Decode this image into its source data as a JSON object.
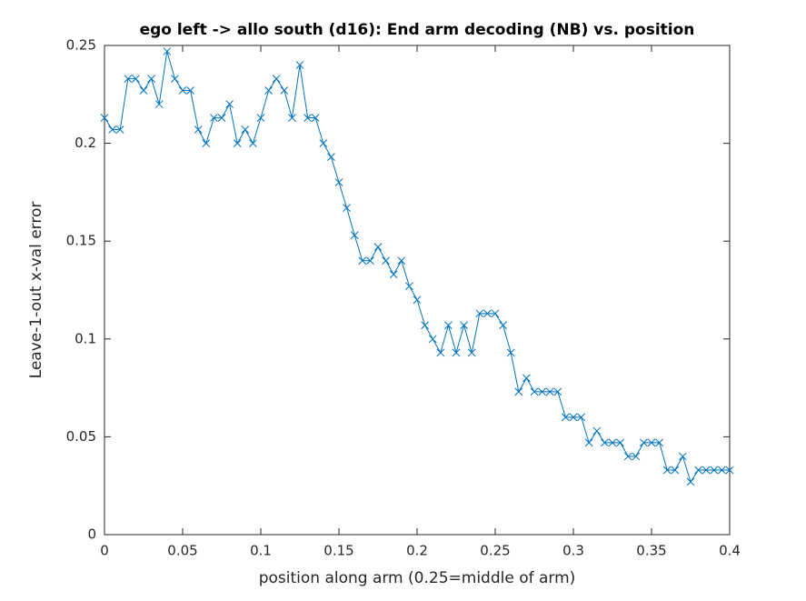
{
  "chart_data": {
    "type": "line",
    "title": "ego left -> allo south (d16): End arm decoding (NB) vs. position",
    "xlabel": "position along arm (0.25=middle of arm)",
    "ylabel": "Leave-1-out x-val error",
    "x": [
      0,
      0.005,
      0.01,
      0.015,
      0.02,
      0.025,
      0.03,
      0.035,
      0.04,
      0.045,
      0.05,
      0.055,
      0.06,
      0.065,
      0.07,
      0.075,
      0.08,
      0.085,
      0.09,
      0.095,
      0.1,
      0.105,
      0.11,
      0.115,
      0.12,
      0.125,
      0.13,
      0.135,
      0.14,
      0.145,
      0.15,
      0.155,
      0.16,
      0.165,
      0.17,
      0.175,
      0.18,
      0.185,
      0.19,
      0.195,
      0.2,
      0.205,
      0.21,
      0.215,
      0.22,
      0.225,
      0.23,
      0.235,
      0.24,
      0.245,
      0.25,
      0.255,
      0.26,
      0.265,
      0.27,
      0.275,
      0.28,
      0.285,
      0.29,
      0.295,
      0.3,
      0.305,
      0.31,
      0.315,
      0.32,
      0.325,
      0.33,
      0.335,
      0.34,
      0.345,
      0.35,
      0.355,
      0.36,
      0.365,
      0.37,
      0.375,
      0.38,
      0.385,
      0.39,
      0.395,
      0.4
    ],
    "values": [
      0.213,
      0.207,
      0.207,
      0.233,
      0.233,
      0.227,
      0.233,
      0.22,
      0.247,
      0.233,
      0.227,
      0.227,
      0.207,
      0.2,
      0.213,
      0.213,
      0.22,
      0.2,
      0.207,
      0.2,
      0.213,
      0.227,
      0.233,
      0.227,
      0.213,
      0.24,
      0.213,
      0.213,
      0.2,
      0.193,
      0.18,
      0.167,
      0.153,
      0.14,
      0.14,
      0.147,
      0.14,
      0.133,
      0.14,
      0.127,
      0.12,
      0.107,
      0.1,
      0.093,
      0.107,
      0.093,
      0.107,
      0.093,
      0.113,
      0.113,
      0.113,
      0.107,
      0.093,
      0.073,
      0.08,
      0.073,
      0.073,
      0.073,
      0.073,
      0.06,
      0.06,
      0.06,
      0.047,
      0.053,
      0.047,
      0.047,
      0.047,
      0.04,
      0.04,
      0.047,
      0.047,
      0.047,
      0.033,
      0.033,
      0.04,
      0.027,
      0.033,
      0.033,
      0.033,
      0.033,
      0.033
    ],
    "color": "#0072bd",
    "xlim": [
      0,
      0.4
    ],
    "xticks": [
      0,
      0.05,
      0.1,
      0.15,
      0.2,
      0.25,
      0.3,
      0.35,
      0.4
    ],
    "ylim": [
      0,
      0.25
    ],
    "yticks": [
      0,
      0.05,
      0.1,
      0.15,
      0.2,
      0.25
    ],
    "grid": false
  }
}
